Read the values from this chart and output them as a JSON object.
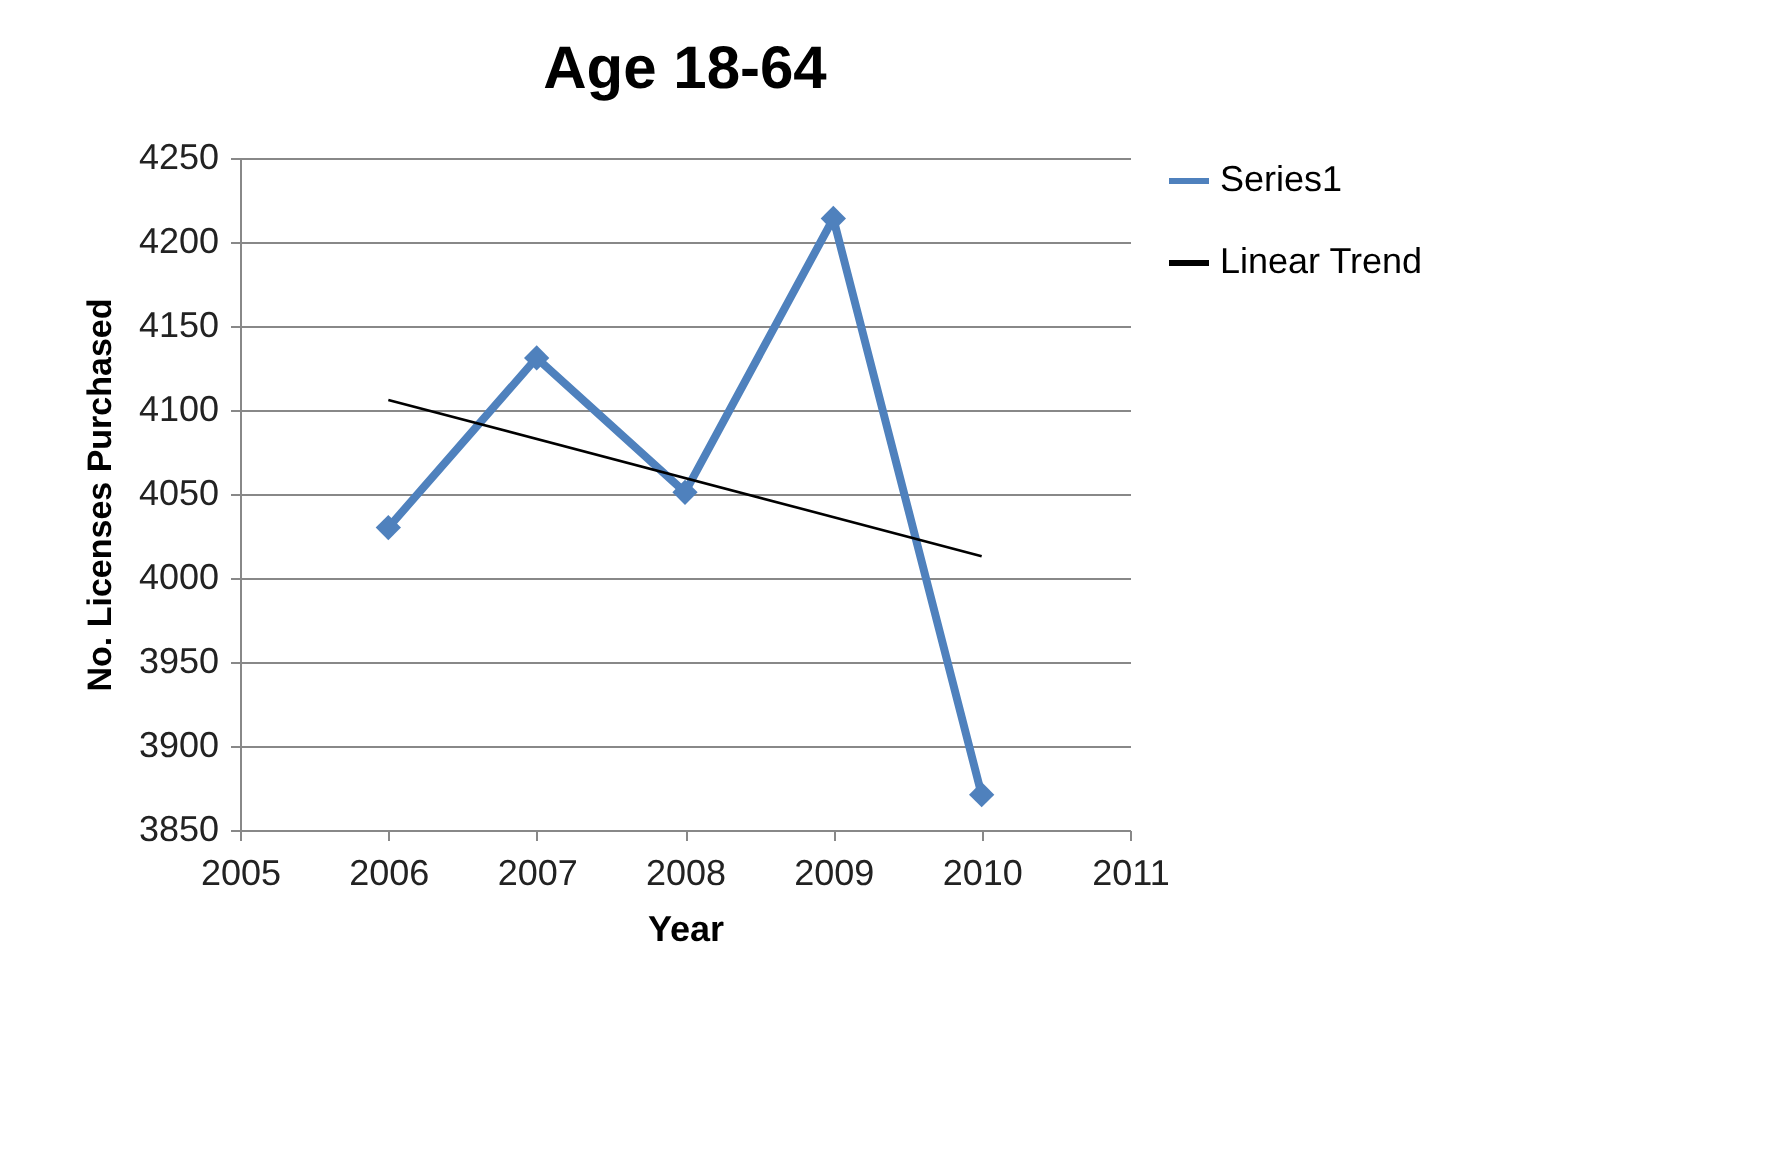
{
  "chart_data": {
    "type": "line",
    "title": "Age 18-64",
    "xlabel": "Year",
    "ylabel": "No. Licenses Purchased",
    "x": [
      2006,
      2007,
      2008,
      2009,
      2010
    ],
    "series": [
      {
        "name": "Series1",
        "color": "#4f81bd",
        "values": [
          4030,
          4131,
          4051,
          4214,
          3871
        ]
      },
      {
        "name": "Linear Trend",
        "type": "line",
        "color": "#000000",
        "x": [
          2006,
          2010
        ],
        "values": [
          4106,
          4013
        ],
        "marker": "none"
      }
    ],
    "xlim": [
      2005,
      2011
    ],
    "xticks": [
      2005,
      2006,
      2007,
      2008,
      2009,
      2010,
      2011
    ],
    "ylim": [
      3850,
      4250
    ],
    "yticks": [
      3850,
      3900,
      3950,
      4000,
      4050,
      4100,
      4150,
      4200,
      4250
    ],
    "grid": "y",
    "legend": "right",
    "marker": "diamond",
    "line_style": "solid"
  }
}
